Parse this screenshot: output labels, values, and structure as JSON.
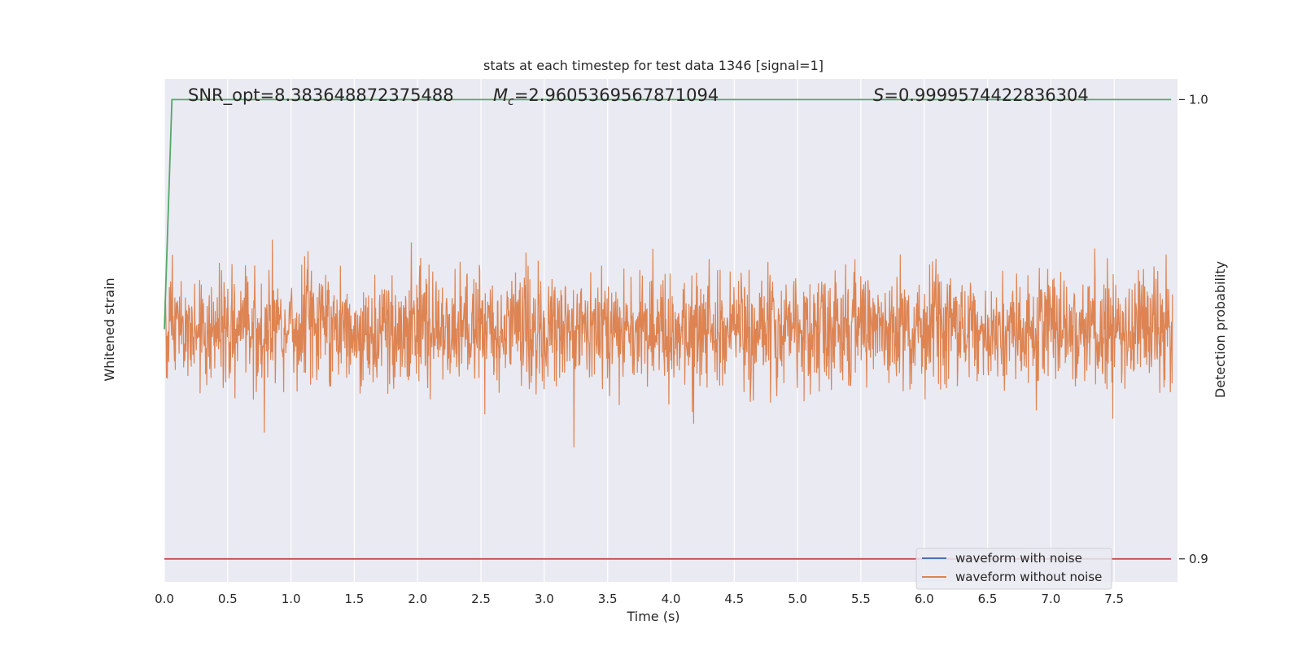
{
  "chart_data": {
    "type": "line",
    "title": "stats at each timestep for test data 1346 [signal=1]",
    "xlabel": "Time (s)",
    "ylabel_left": "Whitened strain",
    "ylabel_right": "Detection probability",
    "xlim": [
      0.0,
      8.0
    ],
    "xticks": [
      "0.0",
      "0.5",
      "1.0",
      "1.5",
      "2.0",
      "2.5",
      "3.0",
      "3.5",
      "4.0",
      "4.5",
      "5.0",
      "5.5",
      "6.0",
      "6.5",
      "7.0",
      "7.5"
    ],
    "y_right_lim": [
      0.895,
      1.0045
    ],
    "y_right_ticks": [
      "0.9",
      "1.0"
    ],
    "grid": true,
    "annotations": {
      "snr": "SNR_opt=8.383648872375488",
      "mc_symbol": "M",
      "mc_sub": "c",
      "mc_value": "=2.9605369567871094",
      "s_symbol": "S",
      "s_value": "=0.9999574422836304"
    },
    "legend": {
      "placement": "lower-right",
      "entries": [
        {
          "label": "waveform with noise",
          "color": "#4c72b0"
        },
        {
          "label": "waveform without noise",
          "color": "#dd8452"
        }
      ]
    },
    "series": [
      {
        "name": "waveform with noise",
        "color": "#4c72b0",
        "style": "noise",
        "amplitude_fraction": 0.0
      },
      {
        "name": "waveform without noise",
        "color": "#dd8452",
        "style": "noise",
        "amplitude_fraction": 0.49
      },
      {
        "color": "#55a868",
        "axis": "right",
        "x": [
          0.0,
          0.06,
          7.95
        ],
        "y": [
          0.95,
          1.0,
          1.0
        ]
      },
      {
        "color": "#c44e52",
        "axis": "right",
        "x": [
          0.0,
          7.95
        ],
        "y": [
          0.9,
          0.9
        ]
      }
    ],
    "colors": {
      "plot_bg": "#eaeaf2",
      "grid": "#ffffff"
    }
  }
}
